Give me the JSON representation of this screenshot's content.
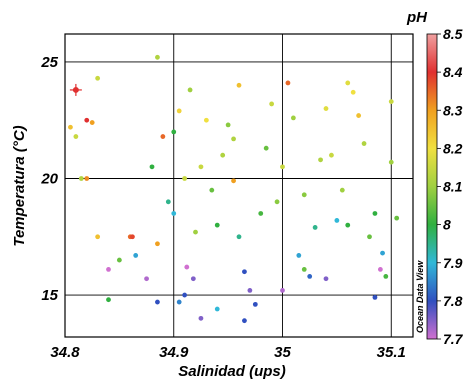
{
  "chart_data": {
    "type": "scatter",
    "xlabel": "Salinidad (ups)",
    "ylabel": "Temperatura (°C)",
    "xlim": [
      34.8,
      35.12
    ],
    "ylim": [
      13.2,
      26.2
    ],
    "xticks": [
      34.8,
      34.9,
      35,
      35.1
    ],
    "xtick_labels": [
      "34.8",
      "34.9",
      "35",
      "35.1"
    ],
    "yticks": [
      15,
      20,
      25
    ],
    "ytick_labels": [
      "15",
      "20",
      "25"
    ],
    "grid": true,
    "colorbar": {
      "title": "pH",
      "min": 7.7,
      "max": 8.5,
      "ticks": [
        7.7,
        7.8,
        7.9,
        8,
        8.1,
        8.2,
        8.3,
        8.4,
        8.5
      ],
      "tick_labels": [
        "7.7",
        "7.8",
        "7.9",
        "8",
        "8.1",
        "8.2",
        "8.3",
        "8.4",
        "8.5"
      ],
      "colors": [
        "#d070d0",
        "#3050c0",
        "#30b8d8",
        "#30b040",
        "#a0d040",
        "#f0e040",
        "#f0a020",
        "#e03030",
        "#f0a0a0"
      ]
    },
    "watermark": "Ocean Data View",
    "marker": {
      "salinity": 34.81,
      "temperature": 23.8,
      "symbol": "+"
    },
    "points": [
      [
        34.805,
        22.2,
        8.25
      ],
      [
        34.81,
        21.8,
        8.15
      ],
      [
        34.815,
        20.0,
        8.12
      ],
      [
        34.82,
        22.5,
        8.4
      ],
      [
        34.825,
        22.4,
        8.3
      ],
      [
        34.83,
        24.3,
        8.15
      ],
      [
        34.82,
        20.0,
        8.32
      ],
      [
        34.83,
        17.5,
        8.25
      ],
      [
        34.84,
        16.1,
        7.7
      ],
      [
        34.84,
        14.8,
        8.0
      ],
      [
        34.85,
        16.5,
        8.05
      ],
      [
        34.86,
        17.5,
        8.35
      ],
      [
        34.862,
        17.5,
        8.38
      ],
      [
        34.865,
        16.7,
        7.88
      ],
      [
        34.875,
        15.7,
        7.72
      ],
      [
        34.88,
        20.5,
        8.0
      ],
      [
        34.885,
        25.2,
        8.12
      ],
      [
        34.885,
        14.7,
        7.8
      ],
      [
        34.885,
        17.2,
        8.3
      ],
      [
        34.895,
        19.0,
        7.95
      ],
      [
        34.89,
        21.8,
        8.35
      ],
      [
        34.9,
        18.5,
        7.9
      ],
      [
        34.9,
        22.0,
        8.0
      ],
      [
        34.905,
        22.9,
        8.22
      ],
      [
        34.91,
        20.0,
        8.15
      ],
      [
        34.915,
        23.8,
        8.1
      ],
      [
        34.905,
        14.7,
        7.85
      ],
      [
        34.91,
        15.0,
        7.8
      ],
      [
        34.912,
        16.2,
        7.7
      ],
      [
        34.918,
        15.7,
        7.75
      ],
      [
        34.92,
        17.7,
        8.1
      ],
      [
        34.925,
        20.5,
        8.15
      ],
      [
        34.93,
        22.5,
        8.2
      ],
      [
        34.935,
        19.5,
        8.05
      ],
      [
        34.94,
        18.0,
        8.0
      ],
      [
        34.945,
        21.0,
        8.12
      ],
      [
        34.95,
        22.3,
        8.08
      ],
      [
        34.955,
        21.7,
        8.12
      ],
      [
        34.96,
        24.0,
        8.25
      ],
      [
        34.955,
        19.9,
        8.3
      ],
      [
        34.96,
        17.5,
        7.95
      ],
      [
        34.965,
        16.0,
        7.8
      ],
      [
        34.97,
        15.2,
        7.75
      ],
      [
        34.975,
        14.6,
        7.8
      ],
      [
        34.98,
        18.5,
        8.02
      ],
      [
        34.985,
        21.3,
        8.05
      ],
      [
        34.99,
        23.2,
        8.15
      ],
      [
        34.995,
        19.0,
        8.08
      ],
      [
        35.0,
        20.5,
        8.15
      ],
      [
        35.005,
        24.1,
        8.35
      ],
      [
        35.01,
        22.6,
        8.1
      ],
      [
        35.015,
        16.7,
        7.88
      ],
      [
        35.02,
        16.1,
        8.05
      ],
      [
        35.025,
        15.8,
        7.82
      ],
      [
        35.03,
        17.9,
        7.95
      ],
      [
        35.035,
        20.8,
        8.12
      ],
      [
        35.04,
        23.0,
        8.18
      ],
      [
        35.045,
        21.0,
        8.15
      ],
      [
        35.05,
        18.2,
        7.9
      ],
      [
        35.055,
        19.5,
        8.1
      ],
      [
        35.06,
        24.1,
        8.18
      ],
      [
        35.065,
        23.7,
        8.2
      ],
      [
        35.07,
        22.7,
        8.25
      ],
      [
        35.075,
        21.5,
        8.12
      ],
      [
        35.08,
        17.5,
        8.05
      ],
      [
        35.085,
        18.5,
        8.0
      ],
      [
        35.09,
        16.1,
        7.7
      ],
      [
        35.092,
        16.8,
        7.88
      ],
      [
        35.095,
        15.8,
        8.02
      ],
      [
        35.1,
        23.3,
        8.15
      ],
      [
        35.1,
        20.7,
        8.1
      ],
      [
        35.105,
        18.3,
        8.05
      ],
      [
        35.085,
        14.9,
        7.8
      ],
      [
        35.04,
        15.7,
        7.75
      ],
      [
        35.0,
        15.2,
        7.72
      ],
      [
        34.965,
        13.9,
        7.8
      ],
      [
        34.94,
        14.4,
        7.9
      ],
      [
        34.925,
        14.0,
        7.75
      ],
      [
        35.02,
        19.3,
        8.08
      ],
      [
        35.06,
        18.0,
        8.0
      ]
    ]
  }
}
